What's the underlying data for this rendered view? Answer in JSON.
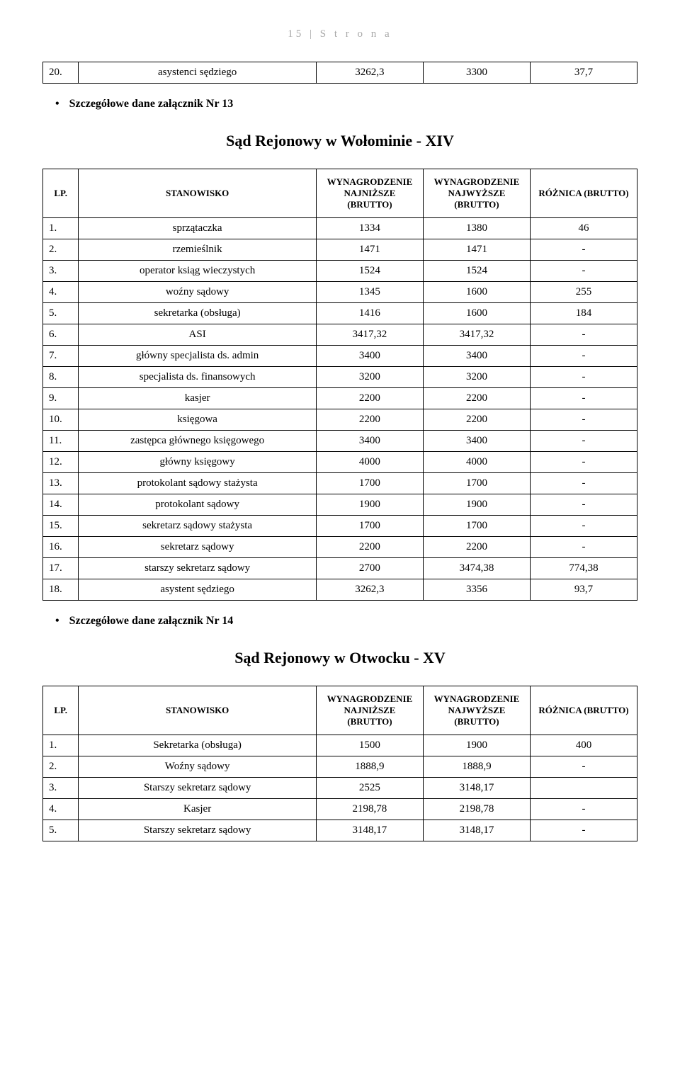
{
  "page_header": "15 | S t r o n a",
  "top_row": {
    "lp": "20.",
    "stan": "asystenci sędziego",
    "low": "3262,3",
    "high": "3300",
    "diff": "37,7"
  },
  "bullet1": "Szczegółowe dane załącznik Nr 13",
  "title1": "Sąd Rejonowy w Wołominie - XIV",
  "headers": {
    "lp": "LP.",
    "stan": "STANOWISKO",
    "low": "WYNAGRODZENIE NAJNIŻSZE (BRUTTO)",
    "high": "WYNAGRODZENIE NAJWYŻSZE (BRUTTO)",
    "diff": "RÓŻNICA (BRUTTO)"
  },
  "table1": [
    {
      "lp": "1.",
      "stan": "sprzątaczka",
      "low": "1334",
      "high": "1380",
      "diff": "46"
    },
    {
      "lp": "2.",
      "stan": "rzemieślnik",
      "low": "1471",
      "high": "1471",
      "diff": "-"
    },
    {
      "lp": "3.",
      "stan": "operator ksiąg wieczystych",
      "low": "1524",
      "high": "1524",
      "diff": "-"
    },
    {
      "lp": "4.",
      "stan": "woźny sądowy",
      "low": "1345",
      "high": "1600",
      "diff": "255"
    },
    {
      "lp": "5.",
      "stan": "sekretarka (obsługa)",
      "low": "1416",
      "high": "1600",
      "diff": "184"
    },
    {
      "lp": "6.",
      "stan": "ASI",
      "low": "3417,32",
      "high": "3417,32",
      "diff": "-"
    },
    {
      "lp": "7.",
      "stan": "główny specjalista ds. admin",
      "low": "3400",
      "high": "3400",
      "diff": "-"
    },
    {
      "lp": "8.",
      "stan": "specjalista ds. finansowych",
      "low": "3200",
      "high": "3200",
      "diff": "-"
    },
    {
      "lp": "9.",
      "stan": "kasjer",
      "low": "2200",
      "high": "2200",
      "diff": "-"
    },
    {
      "lp": "10.",
      "stan": "księgowa",
      "low": "2200",
      "high": "2200",
      "diff": "-"
    },
    {
      "lp": "11.",
      "stan": "zastępca głównego księgowego",
      "low": "3400",
      "high": "3400",
      "diff": "-"
    },
    {
      "lp": "12.",
      "stan": "główny księgowy",
      "low": "4000",
      "high": "4000",
      "diff": "-"
    },
    {
      "lp": "13.",
      "stan": "protokolant sądowy stażysta",
      "low": "1700",
      "high": "1700",
      "diff": "-"
    },
    {
      "lp": "14.",
      "stan": "protokolant sądowy",
      "low": "1900",
      "high": "1900",
      "diff": "-"
    },
    {
      "lp": "15.",
      "stan": "sekretarz sądowy stażysta",
      "low": "1700",
      "high": "1700",
      "diff": "-"
    },
    {
      "lp": "16.",
      "stan": "sekretarz sądowy",
      "low": "2200",
      "high": "2200",
      "diff": "-"
    },
    {
      "lp": "17.",
      "stan": "starszy sekretarz sądowy",
      "low": "2700",
      "high": "3474,38",
      "diff": "774,38"
    },
    {
      "lp": "18.",
      "stan": "asystent sędziego",
      "low": "3262,3",
      "high": "3356",
      "diff": "93,7"
    }
  ],
  "bullet2": "Szczegółowe dane załącznik Nr 14",
  "title2": "Sąd Rejonowy w Otwocku - XV",
  "table2": [
    {
      "lp": "1.",
      "stan": "Sekretarka (obsługa)",
      "low": "1500",
      "high": "1900",
      "diff": "400"
    },
    {
      "lp": "2.",
      "stan": "Woźny sądowy",
      "low": "1888,9",
      "high": "1888,9",
      "diff": "-"
    },
    {
      "lp": "3.",
      "stan": "Starszy sekretarz sądowy",
      "low": "2525",
      "high": "3148,17",
      "diff": ""
    },
    {
      "lp": "4.",
      "stan": "Kasjer",
      "low": "2198,78",
      "high": "2198,78",
      "diff": "-"
    },
    {
      "lp": "5.",
      "stan": "Starszy sekretarz sądowy",
      "low": "3148,17",
      "high": "3148,17",
      "diff": "-"
    }
  ]
}
